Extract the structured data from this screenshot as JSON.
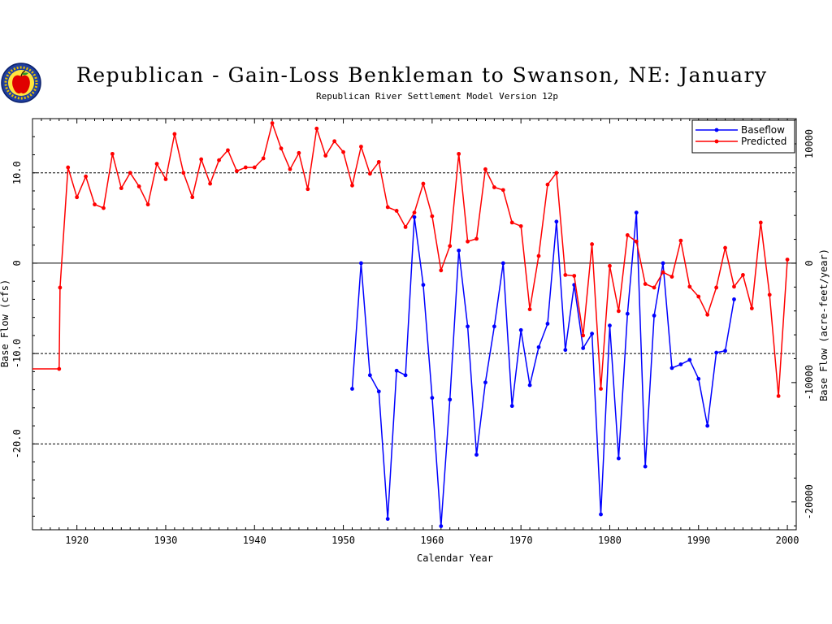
{
  "title": "Republican - Gain-Loss Benkleman to Swanson, NE: January",
  "subtitle": "Republican River Settlement Model Version 12p",
  "logo": {
    "icon": "apple-seal-icon"
  },
  "chart_data": {
    "type": "line",
    "title": "Republican - Gain-Loss Benkleman to Swanson, NE: January",
    "subtitle": "Republican River Settlement Model Version 12p",
    "xlabel": "Calendar Year",
    "ylabel": "Base Flow (cfs)",
    "y2label": "Base Flow (acre-feet/year)",
    "xlim": [
      1915,
      2001
    ],
    "ylim": [
      -29.5,
      16
    ],
    "y2lim": [
      -22330,
      12112
    ],
    "xticks": [
      1920,
      1930,
      1940,
      1950,
      1960,
      1970,
      1980,
      1990,
      2000
    ],
    "xtick_labels": [
      "1920",
      "1930",
      "1940",
      "1950",
      "1960",
      "1970",
      "1980",
      "1990",
      "2000"
    ],
    "yticks": [
      -20,
      -10,
      0,
      10
    ],
    "ytick_labels": [
      "-20.0",
      "-10.0",
      "0",
      "10.0"
    ],
    "y2ticks": [
      -20000,
      -10000,
      0,
      10000
    ],
    "y2tick_labels": [
      "-20000",
      "-10000",
      "0",
      "10000"
    ],
    "grid": {
      "dashed_y": [
        -20,
        -10,
        10
      ],
      "solid_y": [
        0
      ]
    },
    "legend_position": "top-right",
    "series": [
      {
        "name": "Baseflow",
        "color": "#0000ff",
        "x": [
          1951,
          1952,
          1953,
          1954,
          1955,
          1956,
          1957,
          1958,
          1959,
          1960,
          1961,
          1962,
          1963,
          1964,
          1965,
          1966,
          1967,
          1968,
          1969,
          1970,
          1971,
          1972,
          1973,
          1974,
          1975,
          1976,
          1977,
          1978,
          1979,
          1980,
          1981,
          1982,
          1983,
          1984,
          1985,
          1986,
          1987,
          1988,
          1989,
          1990,
          1991,
          1992,
          1993,
          1994
        ],
        "y": [
          -13.9,
          0.0,
          -12.4,
          -14.2,
          -28.3,
          -11.9,
          -12.4,
          5.1,
          -2.4,
          -14.9,
          -29.1,
          -15.1,
          1.4,
          -7.0,
          -21.2,
          -13.2,
          -7.0,
          0.0,
          -15.8,
          -7.4,
          -13.5,
          -9.3,
          -6.7,
          4.6,
          -9.6,
          -2.4,
          -9.4,
          -7.8,
          -27.8,
          -6.9,
          -21.6,
          -5.6,
          5.6,
          -22.5,
          -5.8,
          0.0,
          -11.6,
          -11.2,
          -10.7,
          -12.8,
          -18.0,
          -9.9,
          -9.7,
          -4.0
        ]
      },
      {
        "name": "Predicted",
        "color": "#ff0000",
        "x": [
          1915,
          1918,
          1918.1,
          1919,
          1920,
          1921,
          1922,
          1923,
          1924,
          1925,
          1926,
          1927,
          1928,
          1929,
          1930,
          1931,
          1932,
          1933,
          1934,
          1935,
          1936,
          1937,
          1938,
          1939,
          1940,
          1941,
          1942,
          1943,
          1944,
          1945,
          1946,
          1947,
          1948,
          1949,
          1950,
          1951,
          1952,
          1953,
          1954,
          1955,
          1956,
          1957,
          1958,
          1959,
          1960,
          1961,
          1962,
          1963,
          1964,
          1965,
          1966,
          1967,
          1968,
          1969,
          1970,
          1971,
          1972,
          1973,
          1974,
          1975,
          1976,
          1977,
          1978,
          1979,
          1980,
          1981,
          1982,
          1983,
          1984,
          1985,
          1986,
          1987,
          1988,
          1989,
          1990,
          1991,
          1992,
          1993,
          1994,
          1995,
          1996,
          1997,
          1998,
          1999,
          2000
        ],
        "y": [
          -11.7,
          -11.7,
          -2.7,
          10.6,
          7.3,
          9.6,
          6.5,
          6.1,
          12.1,
          8.3,
          10.0,
          8.5,
          6.5,
          11.0,
          9.3,
          14.3,
          10.0,
          7.3,
          11.5,
          8.8,
          11.4,
          12.5,
          10.2,
          10.6,
          10.6,
          11.6,
          15.5,
          12.7,
          10.4,
          12.2,
          8.2,
          14.9,
          11.9,
          13.5,
          12.3,
          8.6,
          12.9,
          9.9,
          11.2,
          6.2,
          5.8,
          4.0,
          5.6,
          8.8,
          5.2,
          -0.8,
          1.9,
          12.1,
          2.4,
          2.7,
          10.4,
          8.4,
          8.1,
          4.5,
          4.1,
          -5.1,
          0.8,
          8.7,
          10.0,
          -1.3,
          -1.4,
          -8.0,
          2.1,
          -13.9,
          -0.3,
          -5.3,
          3.1,
          2.4,
          -2.3,
          -2.7,
          -1.0,
          -1.5,
          2.5,
          -2.6,
          -3.7,
          -5.7,
          -2.7,
          1.7,
          -2.6,
          -1.3,
          -5.0,
          4.5,
          -3.5,
          -14.7,
          0.4
        ]
      }
    ]
  }
}
